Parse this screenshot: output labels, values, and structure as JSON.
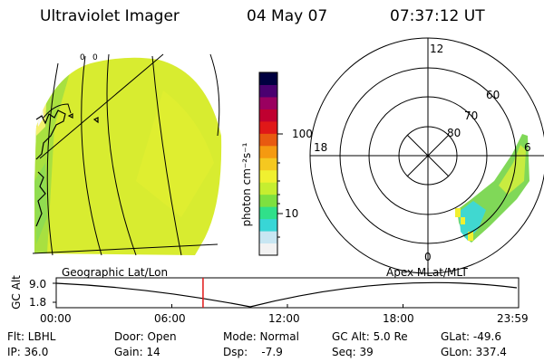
{
  "header": {
    "instrument": "Ultraviolet Imager",
    "date": "04 May 07",
    "time": "07:37:12 UT"
  },
  "colorbar": {
    "unit_label": "photon cm⁻²s⁻¹",
    "tick_100": "100",
    "tick_10": "10",
    "colors": [
      "#f2f2f2",
      "#c8e6f2",
      "#38d6d6",
      "#30e08a",
      "#7ee040",
      "#c6ee30",
      "#f0f030",
      "#f5c820",
      "#f59a10",
      "#e85a10",
      "#e01818",
      "#c00030",
      "#9a0060",
      "#4a0070",
      "#000040"
    ]
  },
  "polar": {
    "lat_labels": [
      "80",
      "70",
      "60"
    ],
    "mlt_labels": {
      "top": "12",
      "left": "18",
      "right": "6",
      "bottom": "0"
    }
  },
  "geo": {
    "lon_labels": [
      "0",
      "0"
    ]
  },
  "timeline": {
    "left_title": "Geographic Lat/Lon",
    "right_title": "Apex MLat/MLT",
    "axis_label": "GC Alt",
    "y_max": "9.0",
    "y_min": "1.8",
    "times": [
      "00:00",
      "06:00",
      "12:00",
      "18:00",
      "23:59"
    ],
    "current_hour": 7.62,
    "marker_color": "#e01818"
  },
  "footer": {
    "flt": "Flt: LBHL",
    "ip": "IP: 36.0",
    "door": "Door: Open",
    "gain": "Gain: 14",
    "mode": "Mode: Normal",
    "dsp": "Dsp:    -7.9",
    "gcalt": "GC Alt: 5.0 Re",
    "seq": "Seq: 39",
    "glat": "GLat: -49.6",
    "glon": "GLon: 337.4"
  }
}
